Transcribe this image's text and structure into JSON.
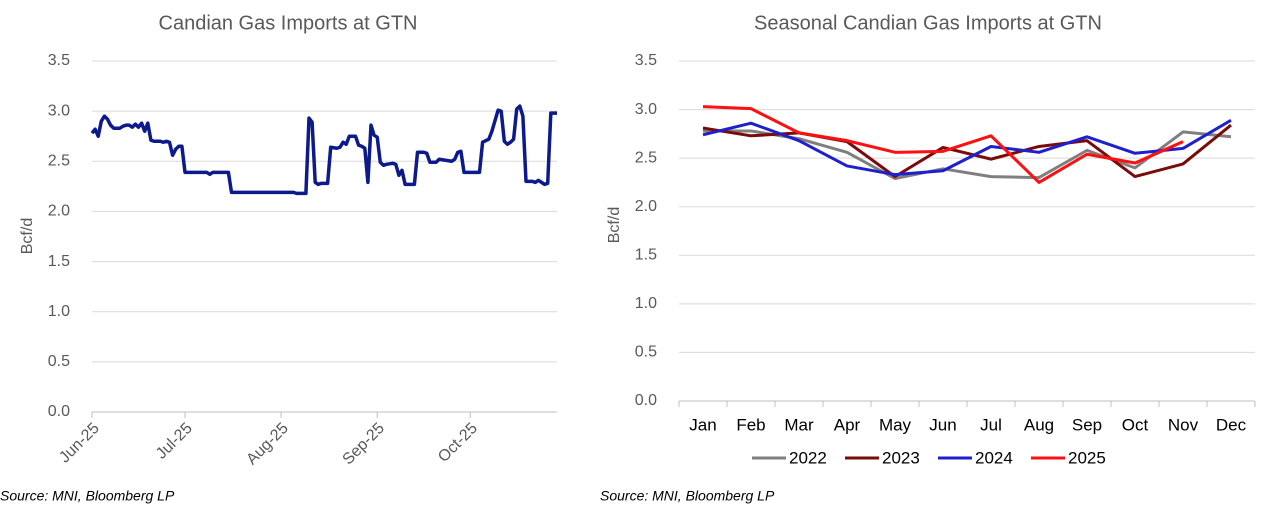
{
  "chart_data": [
    {
      "type": "line",
      "title": "Candian Gas Imports at GTN",
      "ylabel": "Bcf/d",
      "source": "Source: MNI, Bloomberg LP",
      "color": "#0d1a8c",
      "grid": true,
      "xlim": [
        0,
        150
      ],
      "xticks": [
        {
          "value": 0,
          "label": "Jun-25"
        },
        {
          "value": 30,
          "label": "Jul-25"
        },
        {
          "value": 61,
          "label": "Aug-25"
        },
        {
          "value": 92,
          "label": "Sep-25"
        },
        {
          "value": 122,
          "label": "Oct-25"
        }
      ],
      "ylim": [
        0,
        3.5
      ],
      "yticks": [
        {
          "value": 0,
          "label": "0.0"
        },
        0.5,
        {
          "value": 1,
          "label": "1.0"
        },
        1.5,
        {
          "value": 2,
          "label": "2.0"
        },
        2.5,
        {
          "value": 3,
          "label": "3.0"
        },
        3.5
      ],
      "x": [
        0,
        1,
        2,
        3,
        4,
        5,
        6,
        7,
        8,
        9,
        10,
        11,
        12,
        13,
        14,
        15,
        16,
        17,
        18,
        19,
        20,
        22,
        23,
        24,
        25,
        26,
        27,
        28,
        29,
        30,
        35,
        37,
        38,
        39,
        44,
        45,
        65,
        66,
        69,
        70,
        71,
        72,
        73,
        74,
        76,
        77,
        79,
        80,
        81,
        82,
        83,
        85,
        86,
        87,
        88,
        89,
        90,
        91,
        92,
        93,
        94,
        95,
        97,
        98,
        99,
        100,
        101,
        104,
        105,
        107,
        108,
        109,
        111,
        112,
        114,
        116,
        117,
        118,
        119,
        120,
        125,
        126,
        128,
        129,
        131,
        132,
        133,
        134,
        135,
        136,
        137,
        138,
        139,
        140,
        142,
        143,
        144,
        145,
        146,
        147,
        148,
        150
      ],
      "values": [
        2.78,
        2.82,
        2.75,
        2.9,
        2.95,
        2.92,
        2.86,
        2.83,
        2.83,
        2.83,
        2.85,
        2.86,
        2.86,
        2.84,
        2.87,
        2.84,
        2.88,
        2.8,
        2.88,
        2.71,
        2.7,
        2.7,
        2.69,
        2.7,
        2.69,
        2.56,
        2.62,
        2.65,
        2.65,
        2.39,
        2.39,
        2.39,
        2.37,
        2.39,
        2.39,
        2.19,
        2.19,
        2.18,
        2.18,
        2.93,
        2.89,
        2.29,
        2.27,
        2.28,
        2.28,
        2.64,
        2.63,
        2.64,
        2.69,
        2.67,
        2.75,
        2.75,
        2.66,
        2.65,
        2.63,
        2.29,
        2.86,
        2.76,
        2.74,
        2.49,
        2.46,
        2.47,
        2.48,
        2.47,
        2.36,
        2.41,
        2.27,
        2.27,
        2.59,
        2.59,
        2.58,
        2.49,
        2.49,
        2.52,
        2.51,
        2.5,
        2.52,
        2.59,
        2.6,
        2.39,
        2.39,
        2.69,
        2.72,
        2.8,
        3.01,
        3.0,
        2.7,
        2.67,
        2.69,
        2.72,
        3.02,
        3.05,
        2.95,
        2.3,
        2.3,
        2.29,
        2.31,
        2.29,
        2.27,
        2.28,
        2.98,
        2.98
      ]
    },
    {
      "type": "line",
      "title": "Seasonal Candian Gas Imports at GTN",
      "ylabel": "Bcf/d",
      "source": "Source: MNI, Bloomberg LP",
      "grid": true,
      "categories": [
        "Jan",
        "Feb",
        "Mar",
        "Apr",
        "May",
        "Jun",
        "Jul",
        "Aug",
        "Sep",
        "Oct",
        "Nov",
        "Dec"
      ],
      "ylim": [
        0,
        3.5
      ],
      "yticks": [
        {
          "value": 0,
          "label": "0.0"
        },
        0.5,
        {
          "value": 1,
          "label": "1.0"
        },
        1.5,
        {
          "value": 2,
          "label": "2.0"
        },
        2.5,
        {
          "value": 3,
          "label": "3.0"
        },
        3.5
      ],
      "series": [
        {
          "name": "2022",
          "color": "#7f7f7f",
          "values": [
            2.78,
            2.78,
            2.7,
            2.56,
            2.29,
            2.39,
            2.31,
            2.3,
            2.58,
            2.4,
            2.77,
            2.72
          ]
        },
        {
          "name": "2023",
          "color": "#7b0a0a",
          "values": [
            2.81,
            2.73,
            2.76,
            2.67,
            2.31,
            2.61,
            2.49,
            2.62,
            2.68,
            2.31,
            2.44,
            2.84
          ]
        },
        {
          "name": "2024",
          "color": "#1f1fcc",
          "values": [
            2.74,
            2.86,
            2.68,
            2.42,
            2.33,
            2.37,
            2.62,
            2.56,
            2.72,
            2.55,
            2.6,
            2.89
          ]
        },
        {
          "name": "2025",
          "color": "#ff0f0f",
          "values": [
            3.03,
            3.01,
            2.76,
            2.68,
            2.56,
            2.57,
            2.73,
            2.25,
            2.54,
            2.45,
            2.67,
            null
          ]
        }
      ]
    }
  ]
}
